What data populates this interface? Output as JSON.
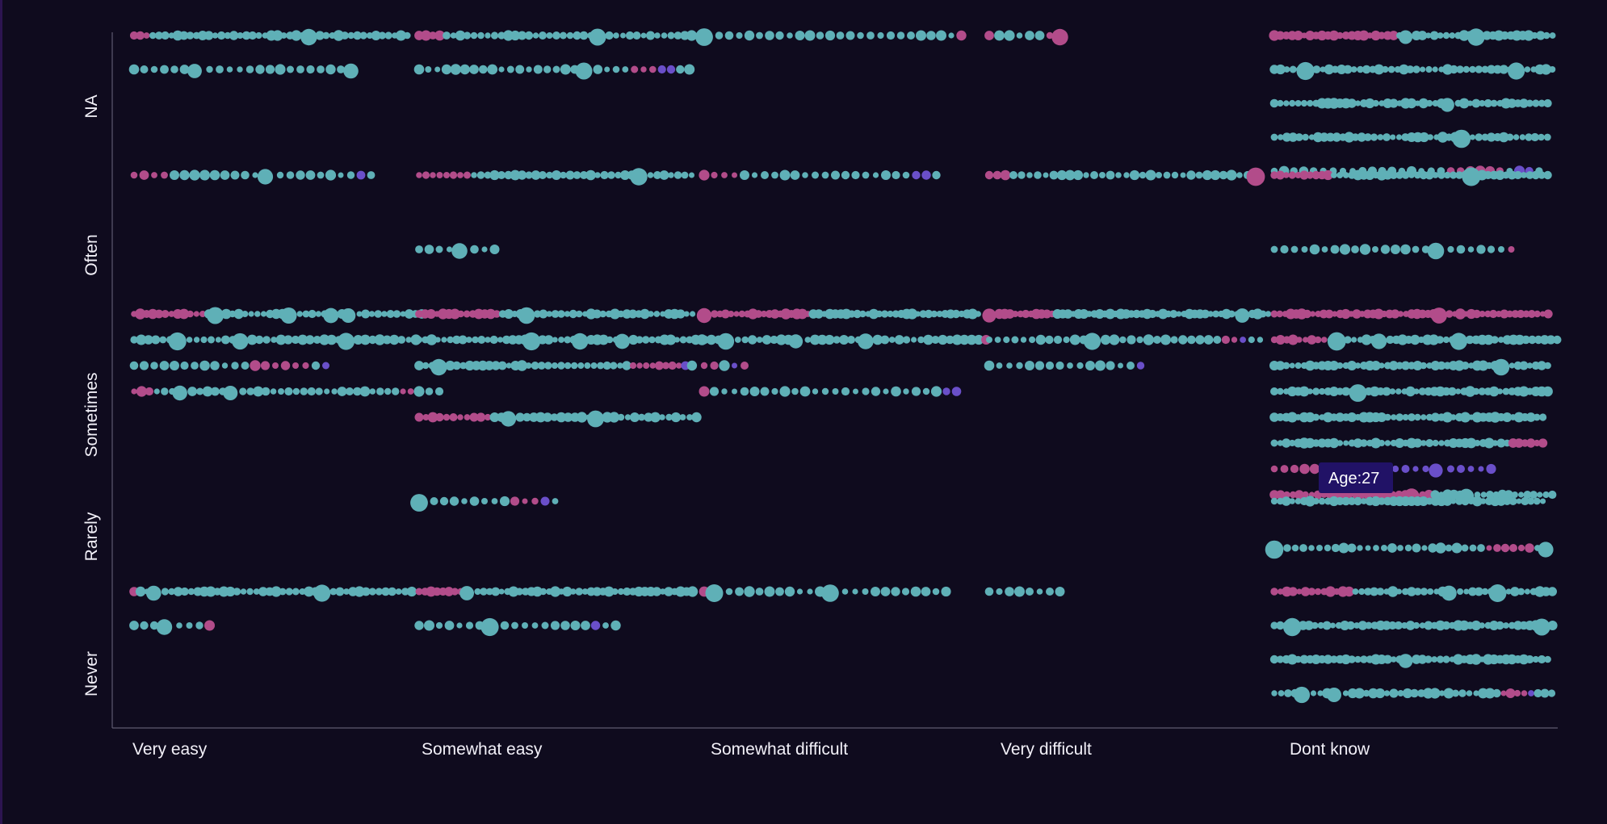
{
  "chart_data": {
    "type": "scatter",
    "subtype": "beeswarm",
    "x_categories": [
      "Very easy",
      "Somewhat easy",
      "Somewhat difficult",
      "Very difficult",
      "Dont know"
    ],
    "y_categories": [
      "NA",
      "Often",
      "Sometimes",
      "Rarely",
      "Never"
    ],
    "colors": {
      "background": "#0f0b1e",
      "teal": "#5fb0b7",
      "pink": "#b24c8a",
      "purple": "#6a4fc9",
      "axis": "#5e5a70",
      "tooltip": "#211266"
    },
    "tooltip": {
      "label": "Age:27",
      "column": "Dont know",
      "row": "Sometimes"
    },
    "grid": false,
    "legend": "none",
    "cells": [
      {
        "x": "Very easy",
        "y": "NA",
        "lines": [
          {
            "n": 44,
            "pink": [
              0,
              1,
              2
            ],
            "big": [
              28
            ]
          },
          {
            "n": 22,
            "big": [
              6,
              21
            ]
          }
        ]
      },
      {
        "x": "Very easy",
        "y": "Often",
        "lines": [
          {
            "n": 24,
            "pink": [
              0,
              1,
              2,
              3
            ],
            "purple": [
              22
            ],
            "big": [
              13
            ]
          }
        ]
      },
      {
        "x": "Very easy",
        "y": "Sometimes",
        "lines": [
          {
            "n": 44,
            "pink": [
              0,
              1,
              2,
              3,
              4,
              5,
              6,
              7,
              8,
              9,
              10,
              11
            ],
            "big": [
              13,
              24,
              30,
              32
            ]
          },
          {
            "n": 38,
            "big": [
              6,
              14,
              28
            ]
          },
          {
            "n": 20,
            "pink": [
              12,
              13,
              14,
              15,
              16,
              17
            ],
            "purple": [
              19
            ]
          },
          {
            "n": 36,
            "pink": [
              0,
              1,
              2,
              34,
              35
            ],
            "big": [
              6,
              12
            ]
          }
        ]
      },
      {
        "x": "Very easy",
        "y": "Never",
        "lines": [
          {
            "n": 42,
            "pink": [
              0
            ],
            "big": [
              3,
              28
            ]
          },
          {
            "n": 8,
            "pink": [
              7
            ],
            "big": [
              3
            ]
          }
        ]
      },
      {
        "x": "Somewhat easy",
        "y": "NA",
        "lines": [
          {
            "n": 40,
            "pink": [
              0,
              1,
              2,
              3
            ],
            "big": [
              26
            ]
          },
          {
            "n": 30,
            "pink": [
              23,
              24,
              25
            ],
            "purple": [
              26,
              27
            ],
            "big": [
              18
            ]
          }
        ]
      },
      {
        "x": "Somewhat easy",
        "y": "Often",
        "lines": [
          {
            "n": 40,
            "pink": [
              0,
              1,
              2,
              3,
              4,
              5,
              6,
              7
            ],
            "big": [
              32
            ]
          },
          {
            "n": 8,
            "big": [
              4
            ]
          }
        ]
      },
      {
        "x": "Somewhat easy",
        "y": "Sometimes",
        "lines": [
          {
            "n": 46,
            "pink": [
              0,
              1,
              2,
              3,
              4,
              5,
              6,
              7,
              8,
              9,
              10,
              11,
              12,
              13
            ],
            "big": [
              18
            ]
          },
          {
            "n": 44,
            "big": [
              18,
              25,
              31
            ]
          },
          {
            "n": 42,
            "pink": [
              32,
              33,
              34,
              35,
              36,
              37,
              38,
              39
            ],
            "purple": [
              40
            ],
            "big": [
              3
            ]
          },
          {
            "n": 3
          },
          {
            "n": 40,
            "pink": [
              0,
              1,
              2,
              3,
              4,
              5,
              6,
              7,
              8,
              9,
              10
            ],
            "big": [
              13,
              25
            ]
          }
        ]
      },
      {
        "x": "Somewhat easy",
        "y": "Rarely",
        "lines": [
          {
            "n": 14,
            "pink": [
              9,
              10,
              11,
              12
            ],
            "purple": [
              12
            ],
            "big": [
              0
            ]
          }
        ]
      },
      {
        "x": "Somewhat easy",
        "y": "Never",
        "lines": [
          {
            "n": 46,
            "pink": [
              0,
              1,
              2,
              3,
              4,
              5,
              6,
              7
            ],
            "big": [
              8
            ]
          },
          {
            "n": 20,
            "purple": [
              17
            ],
            "big": [
              7
            ]
          }
        ]
      },
      {
        "x": "Somewhat difficult",
        "y": "NA",
        "lines": [
          {
            "n": 26,
            "pink": [
              25
            ],
            "big": [
              0
            ]
          }
        ]
      },
      {
        "x": "Somewhat difficult",
        "y": "Often",
        "lines": [
          {
            "n": 24,
            "pink": [
              0,
              1,
              2,
              3
            ],
            "purple": [
              21,
              22
            ]
          }
        ]
      },
      {
        "x": "Somewhat difficult",
        "y": "Sometimes",
        "lines": [
          {
            "n": 50,
            "pink": [
              0,
              1,
              2,
              3,
              4,
              5,
              6,
              7,
              8,
              9,
              10,
              11,
              12,
              13,
              14,
              15,
              16,
              17,
              18
            ],
            "big": [
              0
            ]
          },
          {
            "n": 38,
            "pink": [
              37
            ],
            "big": [
              3,
              12,
              21
            ]
          },
          {
            "n": 5,
            "pink": [
              0,
              1,
              4
            ],
            "purple": [
              3
            ]
          },
          {
            "n": 26,
            "pink": [
              0
            ],
            "purple": [
              24,
              25
            ]
          }
        ]
      },
      {
        "x": "Somewhat difficult",
        "y": "Never",
        "lines": [
          {
            "n": 24,
            "pink": [
              0
            ],
            "big": [
              1,
              12
            ]
          }
        ]
      },
      {
        "x": "Very difficult",
        "y": "NA",
        "lines": [
          {
            "n": 8,
            "pink": [
              0,
              6,
              7
            ],
            "big": [
              7
            ]
          }
        ]
      },
      {
        "x": "Very difficult",
        "y": "Often",
        "lines": [
          {
            "n": 34,
            "pink": [
              0,
              1,
              2,
              33
            ],
            "big": [
              33
            ]
          }
        ]
      },
      {
        "x": "Very difficult",
        "y": "Sometimes",
        "lines": [
          {
            "n": 52,
            "pink": [
              0,
              1,
              2,
              3,
              4,
              5,
              6,
              7,
              8,
              9,
              10,
              11
            ],
            "big": [
              0,
              47
            ]
          },
          {
            "n": 32,
            "pink": [
              27,
              28
            ],
            "purple": [
              29
            ],
            "big": [
              12
            ]
          },
          {
            "n": 16,
            "purple": [
              15
            ]
          }
        ]
      },
      {
        "x": "Very difficult",
        "y": "Never",
        "lines": [
          {
            "n": 8
          }
        ]
      },
      {
        "x": "Dont know",
        "y": "NA",
        "lines": [
          {
            "n": 46,
            "pink": [
              0,
              1,
              2,
              3,
              4,
              5,
              6,
              7,
              8,
              9,
              10,
              11,
              12,
              13,
              14,
              15,
              16,
              17,
              18,
              19,
              20
            ],
            "big": [
              22,
              33
            ]
          },
          {
            "n": 44,
            "big": [
              5,
              38
            ]
          },
          {
            "n": 46,
            "big": [
              29
            ]
          },
          {
            "n": 44,
            "big": [
              30
            ]
          },
          {
            "n": 28,
            "pink": [
              18,
              19,
              20,
              21,
              22,
              23
            ],
            "purple": [
              25,
              26
            ]
          }
        ]
      },
      {
        "x": "Dont know",
        "y": "Often",
        "lines": [
          {
            "n": 46,
            "pink": [
              0,
              1,
              2,
              3,
              4,
              5,
              6,
              7,
              8,
              9
            ],
            "big": [
              33
            ]
          },
          {
            "n": 24,
            "pink": [
              23
            ],
            "big": [
              16
            ]
          }
        ]
      },
      {
        "x": "Dont know",
        "y": "Sometimes",
        "lines": [
          {
            "n": 50,
            "pink": [
              0,
              1,
              2,
              3,
              4,
              5,
              6,
              7,
              8,
              9,
              10,
              11,
              12,
              13,
              14,
              15,
              16,
              17,
              18,
              19,
              20,
              21,
              22,
              23,
              24,
              25,
              26,
              27,
              28,
              29,
              30,
              31,
              32,
              33,
              34,
              35,
              36,
              37,
              38,
              39,
              40,
              41,
              42,
              43,
              44,
              45,
              46,
              47,
              48,
              49
            ],
            "big": [
              30
            ]
          },
          {
            "n": 44,
            "pink": [
              0,
              1,
              2,
              3,
              4,
              5,
              6,
              7,
              8
            ],
            "big": [
              10,
              16,
              28
            ]
          },
          {
            "n": 46,
            "big": [
              38
            ]
          },
          {
            "n": 46,
            "big": [
              14
            ]
          },
          {
            "n": 46
          },
          {
            "n": 46,
            "pink": [
              40,
              41,
              42,
              43,
              44,
              45
            ]
          },
          {
            "n": 22,
            "pink": [
              0,
              1,
              2,
              3,
              4,
              5,
              6,
              7
            ],
            "purple": [
              8,
              9,
              10,
              11,
              12,
              13,
              14,
              15,
              16,
              17,
              18,
              19,
              20,
              21
            ],
            "big": [
              16
            ]
          },
          {
            "n": 44,
            "pink": [
              0,
              1,
              2,
              3,
              4,
              5,
              6,
              7,
              8,
              9,
              10,
              11,
              12,
              13,
              14,
              15,
              16,
              17,
              18,
              19,
              20,
              21,
              22,
              23,
              24
            ],
            "big": [
              22,
              30
            ]
          }
        ]
      },
      {
        "x": "Dont know",
        "y": "Rarely",
        "lines": [
          {
            "n": 46
          },
          {
            "n": 34,
            "pink": [
              26,
              27,
              28,
              29,
              30,
              31
            ],
            "big": [
              0,
              33
            ]
          }
        ]
      },
      {
        "x": "Dont know",
        "y": "Never",
        "lines": [
          {
            "n": 44,
            "pink": [
              0,
              1,
              2,
              3,
              4,
              5,
              6,
              7,
              8,
              9,
              10,
              11,
              12
            ],
            "big": [
              28,
              35
            ]
          },
          {
            "n": 46,
            "big": [
              3,
              44
            ]
          },
          {
            "n": 46,
            "big": [
              22
            ]
          },
          {
            "n": 40,
            "pink": [
              32,
              33,
              34,
              35
            ],
            "purple": [
              36
            ],
            "big": [
              4,
              8
            ]
          }
        ]
      }
    ]
  }
}
